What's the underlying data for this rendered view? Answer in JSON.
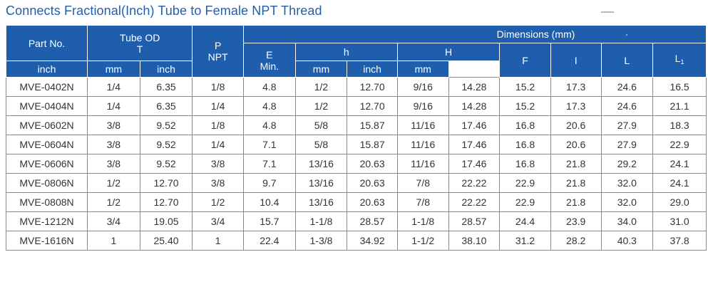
{
  "title": "Connects Fractional(Inch) Tube to Female NPT Thread",
  "header": {
    "part_no": "Part No.",
    "tube_od": "Tube OD",
    "tube_od_symbol": "T",
    "p": "P",
    "npt": "NPT",
    "dimensions": "Dimensions (mm)",
    "e": "E",
    "e_min": "Min.",
    "h_small": "h",
    "h_big": "H",
    "f": "F",
    "i": "I",
    "l": "L",
    "l1": "L",
    "l1_sub": "1",
    "inch": "inch",
    "mm": "mm"
  },
  "rows": [
    [
      "MVE-0402N",
      "1/4",
      "6.35",
      "1/8",
      "4.8",
      "1/2",
      "12.70",
      "9/16",
      "14.28",
      "15.2",
      "17.3",
      "24.6",
      "16.5"
    ],
    [
      "MVE-0404N",
      "1/4",
      "6.35",
      "1/4",
      "4.8",
      "1/2",
      "12.70",
      "9/16",
      "14.28",
      "15.2",
      "17.3",
      "24.6",
      "21.1"
    ],
    [
      "MVE-0602N",
      "3/8",
      "9.52",
      "1/8",
      "4.8",
      "5/8",
      "15.87",
      "11/16",
      "17.46",
      "16.8",
      "20.6",
      "27.9",
      "18.3"
    ],
    [
      "MVE-0604N",
      "3/8",
      "9.52",
      "1/4",
      "7.1",
      "5/8",
      "15.87",
      "11/16",
      "17.46",
      "16.8",
      "20.6",
      "27.9",
      "22.9"
    ],
    [
      "MVE-0606N",
      "3/8",
      "9.52",
      "3/8",
      "7.1",
      "13/16",
      "20.63",
      "11/16",
      "17.46",
      "16.8",
      "21.8",
      "29.2",
      "24.1"
    ],
    [
      "MVE-0806N",
      "1/2",
      "12.70",
      "3/8",
      "9.7",
      "13/16",
      "20.63",
      "7/8",
      "22.22",
      "22.9",
      "21.8",
      "32.0",
      "24.1"
    ],
    [
      "MVE-0808N",
      "1/2",
      "12.70",
      "1/2",
      "10.4",
      "13/16",
      "20.63",
      "7/8",
      "22.22",
      "22.9",
      "21.8",
      "32.0",
      "29.0"
    ],
    [
      "MVE-1212N",
      "3/4",
      "19.05",
      "3/4",
      "15.7",
      "1-1/8",
      "28.57",
      "1-1/8",
      "28.57",
      "24.4",
      "23.9",
      "34.0",
      "31.0"
    ],
    [
      "MVE-1616N",
      "1",
      "25.40",
      "1",
      "22.4",
      "1-3/8",
      "34.92",
      "1-1/2",
      "38.10",
      "31.2",
      "28.2",
      "40.3",
      "37.8"
    ]
  ]
}
